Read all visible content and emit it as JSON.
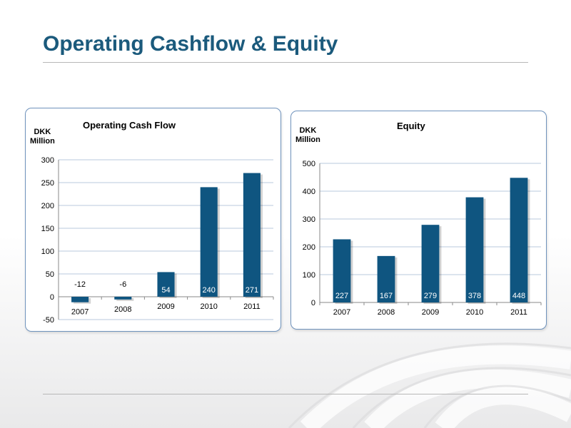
{
  "slide": {
    "title": "Operating Cashflow & Equity"
  },
  "colors": {
    "title": "#1b5a7c",
    "bar": "#0f5580",
    "grid": "#b8c8dc",
    "panel_border": "#6f93bd"
  },
  "chart_data": [
    {
      "type": "bar",
      "title": "Operating Cash Flow",
      "unit_label_1": "DKK",
      "unit_label_2": "Million",
      "categories": [
        "2007",
        "2008",
        "2009",
        "2010",
        "2011"
      ],
      "values": [
        -12,
        -6,
        54,
        240,
        271
      ],
      "data_labels": [
        "-12",
        "-6",
        "54",
        "240",
        "271"
      ],
      "y_ticks": [
        "300",
        "250",
        "200",
        "150",
        "100",
        "50",
        "0",
        "-50"
      ],
      "ylim": [
        -50,
        300
      ],
      "grid": true,
      "legend": "none"
    },
    {
      "type": "bar",
      "title": "Equity",
      "unit_label_1": "DKK",
      "unit_label_2": "Million",
      "categories": [
        "2007",
        "2008",
        "2009",
        "2010",
        "2011"
      ],
      "values": [
        227,
        167,
        279,
        378,
        448
      ],
      "data_labels": [
        "227",
        "167",
        "279",
        "378",
        "448"
      ],
      "y_ticks": [
        "500",
        "400",
        "300",
        "200",
        "100",
        "0"
      ],
      "ylim": [
        0,
        500
      ],
      "grid": true,
      "legend": "none"
    }
  ]
}
